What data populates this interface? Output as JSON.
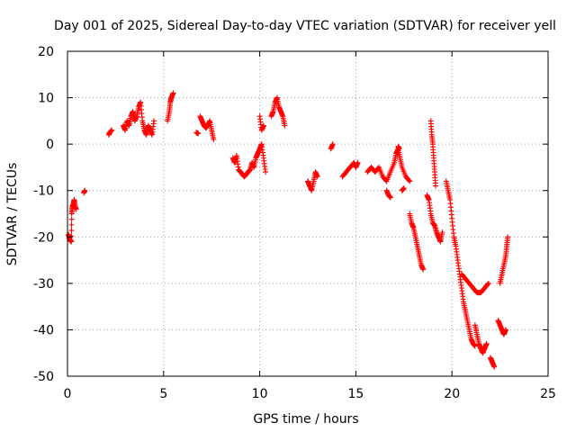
{
  "chart_data": {
    "type": "scatter",
    "title": "Day 001 of 2025, Sidereal Day-to-day VTEC variation (SDTVAR) for receiver yell",
    "xlabel": "GPS time / hours",
    "ylabel": "SDTVAR / TECUs",
    "xlim": [
      0,
      25
    ],
    "ylim": [
      -50,
      20
    ],
    "xticks": [
      "0",
      "5",
      "10",
      "15",
      "20",
      "25"
    ],
    "yticks": [
      "20",
      "10",
      "0",
      "-10",
      "-20",
      "-30",
      "-40",
      "-50"
    ],
    "grid": true,
    "marker": "+",
    "color": "#ff0000",
    "series": [
      {
        "name": "SDTVAR",
        "segments": [
          [
            [
              0.05,
              -19.5
            ],
            [
              0.1,
              -20.3
            ],
            [
              0.15,
              -20.8
            ],
            [
              0.2,
              -21
            ],
            [
              0.22,
              -15
            ],
            [
              0.25,
              -13.5
            ],
            [
              0.3,
              -13
            ],
            [
              0.35,
              -12
            ],
            [
              0.4,
              -13.5
            ],
            [
              0.45,
              -14
            ]
          ],
          [
            [
              0.85,
              -10.5
            ],
            [
              0.9,
              -10
            ]
          ],
          [
            [
              2.15,
              2
            ],
            [
              2.2,
              2.5
            ],
            [
              2.3,
              3
            ]
          ],
          [
            [
              2.9,
              4
            ],
            [
              3.0,
              3
            ],
            [
              3.1,
              5
            ],
            [
              3.2,
              4
            ],
            [
              3.3,
              6
            ],
            [
              3.4,
              7
            ],
            [
              3.5,
              5
            ],
            [
              3.6,
              6
            ],
            [
              3.7,
              8
            ],
            [
              3.8,
              9
            ],
            [
              3.9,
              5
            ],
            [
              4.0,
              3
            ],
            [
              4.1,
              2
            ],
            [
              4.2,
              4
            ],
            [
              4.3,
              3
            ],
            [
              4.4,
              2
            ],
            [
              4.5,
              5
            ]
          ],
          [
            [
              5.2,
              5
            ],
            [
              5.3,
              7
            ],
            [
              5.35,
              9
            ],
            [
              5.4,
              10
            ],
            [
              5.5,
              11
            ]
          ],
          [
            [
              6.7,
              2.5
            ],
            [
              6.8,
              2.3
            ]
          ],
          [
            [
              6.9,
              6
            ],
            [
              7.0,
              5
            ],
            [
              7.1,
              4
            ],
            [
              7.2,
              3.5
            ],
            [
              7.3,
              4
            ],
            [
              7.4,
              5
            ],
            [
              7.5,
              3
            ],
            [
              7.6,
              1
            ]
          ],
          [
            [
              8.6,
              -3
            ],
            [
              8.7,
              -4
            ],
            [
              8.8,
              -2.5
            ],
            [
              8.9,
              -5.5
            ],
            [
              9.0,
              -6
            ],
            [
              9.1,
              -6.5
            ],
            [
              9.2,
              -7
            ],
            [
              9.3,
              -6.5
            ],
            [
              9.4,
              -6
            ],
            [
              9.5,
              -5.5
            ],
            [
              9.6,
              -4
            ],
            [
              9.7,
              -5
            ],
            [
              9.8,
              -3
            ],
            [
              9.9,
              -2
            ],
            [
              10.0,
              -1
            ],
            [
              10.1,
              0
            ],
            [
              10.2,
              -3
            ],
            [
              10.3,
              -6
            ]
          ],
          [
            [
              10.0,
              6
            ],
            [
              10.1,
              3
            ],
            [
              10.2,
              4
            ]
          ],
          [
            [
              10.6,
              6
            ],
            [
              10.7,
              7
            ],
            [
              10.8,
              9
            ],
            [
              10.9,
              10
            ],
            [
              11.0,
              8
            ],
            [
              11.1,
              7
            ],
            [
              11.2,
              6
            ],
            [
              11.3,
              4
            ]
          ],
          [
            [
              12.5,
              -8
            ],
            [
              12.6,
              -9
            ],
            [
              12.7,
              -10
            ],
            [
              12.8,
              -8
            ],
            [
              12.9,
              -6
            ],
            [
              13.0,
              -7
            ]
          ],
          [
            [
              13.7,
              -1
            ],
            [
              13.8,
              0
            ]
          ],
          [
            [
              14.3,
              -7
            ],
            [
              14.5,
              -6
            ],
            [
              14.7,
              -5
            ],
            [
              14.9,
              -4
            ],
            [
              15.0,
              -5
            ],
            [
              15.1,
              -4
            ]
          ],
          [
            [
              15.6,
              -6
            ],
            [
              15.8,
              -5
            ],
            [
              16.0,
              -6
            ],
            [
              16.2,
              -5
            ],
            [
              16.4,
              -7
            ],
            [
              16.6,
              -8
            ],
            [
              16.8,
              -6
            ],
            [
              17.0,
              -4
            ],
            [
              17.1,
              -2
            ],
            [
              17.2,
              -1
            ],
            [
              17.3,
              -3
            ],
            [
              17.4,
              -5
            ],
            [
              17.6,
              -7
            ],
            [
              17.8,
              -8
            ]
          ],
          [
            [
              16.6,
              -10
            ],
            [
              16.7,
              -11
            ],
            [
              16.8,
              -11.5
            ]
          ],
          [
            [
              17.2,
              -0.5
            ],
            [
              17.25,
              -1
            ]
          ],
          [
            [
              17.4,
              -10
            ],
            [
              17.5,
              -9.5
            ]
          ],
          [
            [
              17.8,
              -15
            ],
            [
              17.9,
              -17
            ],
            [
              18.0,
              -18
            ],
            [
              18.1,
              -20
            ],
            [
              18.2,
              -22
            ],
            [
              18.3,
              -24
            ],
            [
              18.4,
              -26
            ],
            [
              18.5,
              -27
            ]
          ],
          [
            [
              18.7,
              -11
            ],
            [
              18.8,
              -12
            ],
            [
              18.9,
              -15
            ],
            [
              19.0,
              -17
            ],
            [
              19.1,
              -17.5
            ],
            [
              19.2,
              -19
            ],
            [
              19.3,
              -20
            ],
            [
              19.4,
              -21
            ],
            [
              19.5,
              -19
            ]
          ],
          [
            [
              18.9,
              5
            ],
            [
              18.95,
              2
            ],
            [
              19.0,
              0
            ],
            [
              19.05,
              -3
            ],
            [
              19.1,
              -6
            ],
            [
              19.15,
              -9
            ]
          ],
          [
            [
              19.7,
              -8
            ],
            [
              19.8,
              -10
            ],
            [
              19.9,
              -12
            ],
            [
              20.0,
              -16
            ],
            [
              20.1,
              -20
            ],
            [
              20.2,
              -22
            ],
            [
              20.3,
              -25
            ],
            [
              20.4,
              -28
            ],
            [
              20.5,
              -31
            ],
            [
              20.6,
              -34
            ],
            [
              20.7,
              -36
            ],
            [
              20.8,
              -38
            ],
            [
              20.9,
              -40
            ],
            [
              21.0,
              -42
            ],
            [
              21.1,
              -43
            ],
            [
              21.2,
              -43.5
            ]
          ],
          [
            [
              20.5,
              -28
            ],
            [
              20.7,
              -29
            ],
            [
              20.9,
              -30
            ],
            [
              21.1,
              -31
            ],
            [
              21.3,
              -32
            ],
            [
              21.5,
              -32
            ],
            [
              21.7,
              -31
            ],
            [
              21.9,
              -30
            ]
          ],
          [
            [
              21.2,
              -39
            ],
            [
              21.3,
              -41
            ],
            [
              21.4,
              -43
            ],
            [
              21.5,
              -44
            ],
            [
              21.6,
              -45
            ],
            [
              21.7,
              -44
            ],
            [
              21.8,
              -43
            ]
          ],
          [
            [
              22.0,
              -46
            ],
            [
              22.1,
              -47
            ],
            [
              22.2,
              -48
            ]
          ],
          [
            [
              22.4,
              -38
            ],
            [
              22.5,
              -39
            ],
            [
              22.6,
              -40
            ],
            [
              22.7,
              -41
            ],
            [
              22.8,
              -40
            ]
          ],
          [
            [
              22.5,
              -30
            ],
            [
              22.6,
              -28
            ],
            [
              22.7,
              -26
            ],
            [
              22.8,
              -24
            ],
            [
              22.85,
              -22
            ],
            [
              22.9,
              -20
            ]
          ]
        ]
      }
    ]
  }
}
